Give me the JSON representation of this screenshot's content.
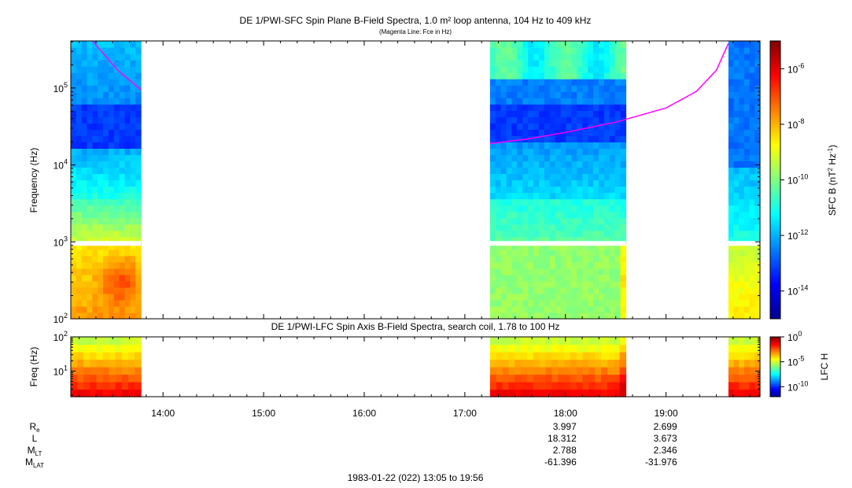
{
  "chart_data": [
    {
      "type": "heatmap",
      "title": "DE 1/PWI-SFC  Spin Plane B-Field Spectra, 1.0 m² loop antenna, 104 Hz to 409 kHz",
      "subtitle": "(Magenta Line: Fce in Hz)",
      "ylabel": "Frequency (Hz)",
      "yscale": "log",
      "ylim": [
        100,
        409000
      ],
      "yticks": [
        {
          "value": 100,
          "label": "10",
          "exp": "2"
        },
        {
          "value": 1000,
          "label": "10",
          "exp": "3"
        },
        {
          "value": 10000,
          "label": "10",
          "exp": "4"
        },
        {
          "value": 100000,
          "label": "10",
          "exp": "5"
        }
      ],
      "xlim_hours": [
        13.0833,
        19.9333
      ],
      "data_intervals_hours": [
        [
          13.0833,
          13.78
        ],
        [
          17.25,
          18.6
        ],
        [
          19.62,
          19.9333
        ]
      ],
      "colorbar": {
        "label": "SFC B (nT",
        "label_exp": "2",
        "label_mid": " Hz",
        "label_exp2": "-1",
        "label_end": ")",
        "scale": "log",
        "range": [
          1e-15,
          1e-05
        ],
        "ticks": [
          {
            "value": 1e-06,
            "label": "10",
            "exp": "-6"
          },
          {
            "value": 1e-08,
            "label": "10",
            "exp": "-8"
          },
          {
            "value": 1e-10,
            "label": "10",
            "exp": "-10"
          },
          {
            "value": 1e-12,
            "label": "10",
            "exp": "-12"
          },
          {
            "value": 1e-14,
            "label": "10",
            "exp": "-14"
          }
        ]
      },
      "fce_line": {
        "color": "#ff00ff",
        "segments": [
          [
            [
              13.3,
              409000
            ],
            [
              13.55,
              170000
            ],
            [
              13.78,
              95000
            ]
          ],
          [
            [
              17.25,
              19000
            ],
            [
              17.6,
              21500
            ],
            [
              18.0,
              26500
            ],
            [
              18.5,
              36000
            ],
            [
              19.0,
              55000
            ],
            [
              19.3,
              90000
            ],
            [
              19.5,
              170000
            ],
            [
              19.62,
              380000
            ]
          ]
        ]
      }
    },
    {
      "type": "heatmap",
      "title": "DE 1/PWI-LFC  Spin Axis B-Field Spectra, search coil, 1.78 to 100 Hz",
      "ylabel": "Freq (Hz)",
      "yscale": "log",
      "ylim": [
        1.78,
        100
      ],
      "yticks": [
        {
          "value": 10,
          "label": "10",
          "exp": "1"
        },
        {
          "value": 100,
          "label": "10",
          "exp": "2"
        }
      ],
      "xlim_hours": [
        13.0833,
        19.9333
      ],
      "data_intervals_hours": [
        [
          13.0833,
          13.78
        ],
        [
          17.25,
          18.6
        ],
        [
          19.62,
          19.9333
        ]
      ],
      "colorbar": {
        "label": "LFC H",
        "scale": "log",
        "range": [
          1e-12,
          1
        ],
        "ticks": [
          {
            "value": 1,
            "label": "10",
            "exp": "0"
          },
          {
            "value": 1e-05,
            "label": "10",
            "exp": "-5"
          },
          {
            "value": 1e-10,
            "label": "10",
            "exp": "-10"
          }
        ]
      }
    }
  ],
  "x_axis": {
    "ticks": [
      {
        "hour": 14,
        "label": "14:00"
      },
      {
        "hour": 15,
        "label": "15:00"
      },
      {
        "hour": 16,
        "label": "16:00"
      },
      {
        "hour": 17,
        "label": "17:00"
      },
      {
        "hour": 18,
        "label": "18:00"
      },
      {
        "hour": 19,
        "label": "19:00"
      }
    ]
  },
  "ephemeris": {
    "rows": [
      {
        "label": "R",
        "sub": "e",
        "values": [
          "3.997",
          "2.699"
        ]
      },
      {
        "label": "L",
        "sub": "",
        "values": [
          "18.312",
          "3.673"
        ]
      },
      {
        "label": "M",
        "sub": "LT",
        "values": [
          "2.788",
          "2.346"
        ]
      },
      {
        "label": "M",
        "sub": "LAT",
        "values": [
          "-61.396",
          "-31.976"
        ]
      }
    ],
    "at_hours": [
      18,
      19
    ]
  },
  "footer": "1983-01-22 (022) 13:05 to 19:56",
  "colors": {
    "fce_line": "#ff00ff",
    "frame": "#000000",
    "background": "#ffffff"
  }
}
